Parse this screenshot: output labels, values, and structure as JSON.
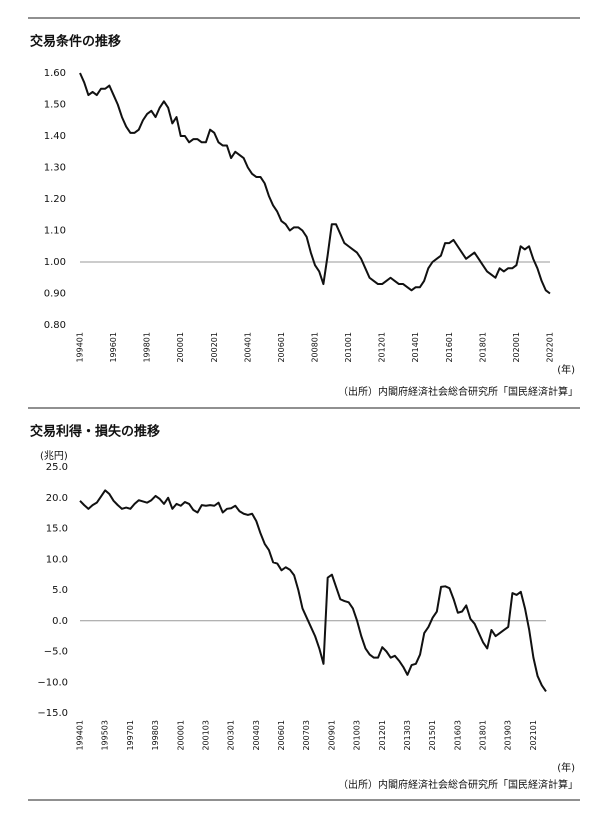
{
  "chart_data": [
    {
      "type": "line",
      "title": "交易条件の推移",
      "xlabel": "(年)",
      "note": "（出所）内閣府経済社会総合研究所「国民経済計算」",
      "categories": [
        "199401",
        null,
        null,
        null,
        null,
        null,
        null,
        null,
        "199601",
        null,
        null,
        null,
        null,
        null,
        null,
        null,
        "199801",
        null,
        null,
        null,
        null,
        null,
        null,
        null,
        "200001",
        null,
        null,
        null,
        null,
        null,
        null,
        null,
        "200201",
        null,
        null,
        null,
        null,
        null,
        null,
        null,
        "200401",
        null,
        null,
        null,
        null,
        null,
        null,
        null,
        "200601",
        null,
        null,
        null,
        null,
        null,
        null,
        null,
        "200801",
        null,
        null,
        null,
        null,
        null,
        null,
        null,
        "201001",
        null,
        null,
        null,
        null,
        null,
        null,
        null,
        "201201",
        null,
        null,
        null,
        null,
        null,
        null,
        null,
        "201401",
        null,
        null,
        null,
        null,
        null,
        null,
        null,
        "201601",
        null,
        null,
        null,
        null,
        null,
        null,
        null,
        "201801",
        null,
        null,
        null,
        null,
        null,
        null,
        null,
        "202001",
        null,
        null,
        null,
        null,
        null,
        null,
        null,
        "202201"
      ],
      "values": [
        1.6,
        1.57,
        1.53,
        1.54,
        1.53,
        1.55,
        1.55,
        1.56,
        1.53,
        1.5,
        1.46,
        1.43,
        1.41,
        1.41,
        1.42,
        1.45,
        1.47,
        1.48,
        1.46,
        1.49,
        1.51,
        1.49,
        1.44,
        1.46,
        1.4,
        1.4,
        1.38,
        1.39,
        1.39,
        1.38,
        1.38,
        1.42,
        1.41,
        1.38,
        1.37,
        1.37,
        1.33,
        1.35,
        1.34,
        1.33,
        1.3,
        1.28,
        1.27,
        1.27,
        1.25,
        1.21,
        1.18,
        1.16,
        1.13,
        1.12,
        1.1,
        1.11,
        1.11,
        1.1,
        1.08,
        1.03,
        0.99,
        0.97,
        0.93,
        1.02,
        1.12,
        1.12,
        1.09,
        1.06,
        1.05,
        1.04,
        1.03,
        1.01,
        0.98,
        0.95,
        0.94,
        0.93,
        0.93,
        0.94,
        0.95,
        0.94,
        0.93,
        0.93,
        0.92,
        0.91,
        0.92,
        0.92,
        0.94,
        0.98,
        1.0,
        1.01,
        1.02,
        1.06,
        1.06,
        1.07,
        1.05,
        1.03,
        1.01,
        1.02,
        1.03,
        1.01,
        0.99,
        0.97,
        0.96,
        0.95,
        0.98,
        0.97,
        0.98,
        0.98,
        0.99,
        1.05,
        1.04,
        1.05,
        1.01,
        0.98,
        0.94,
        0.91,
        0.9
      ],
      "color": "#111111",
      "baseline": 1,
      "ylim": [
        0.8,
        1.6
      ],
      "yticks": [
        {
          "value": 1.6,
          "label": "1.60"
        },
        {
          "value": 1.5,
          "label": "1.50"
        },
        {
          "value": 1.4,
          "label": "1.40"
        },
        {
          "value": 1.3,
          "label": "1.30"
        },
        {
          "value": 1.2,
          "label": "1.20"
        },
        {
          "value": 1.1,
          "label": "1.10"
        },
        {
          "value": 1.0,
          "label": "1.00"
        },
        {
          "value": 0.9,
          "label": "0.90"
        },
        {
          "value": 0.8,
          "label": "0.80"
        }
      ]
    },
    {
      "type": "line",
      "title": "交易利得・損失の推移",
      "ylabel": "(兆円)",
      "xlabel": "(年)",
      "note": "（出所）内閣府経済社会総合研究所「国民経済計算」",
      "categories": [
        "199401",
        null,
        null,
        null,
        null,
        null,
        "199503",
        null,
        null,
        null,
        null,
        null,
        "199701",
        null,
        null,
        null,
        null,
        null,
        "199803",
        null,
        null,
        null,
        null,
        null,
        "200001",
        null,
        null,
        null,
        null,
        null,
        "200103",
        null,
        null,
        null,
        null,
        null,
        "200301",
        null,
        null,
        null,
        null,
        null,
        "200403",
        null,
        null,
        null,
        null,
        null,
        "200601",
        null,
        null,
        null,
        null,
        null,
        "200703",
        null,
        null,
        null,
        null,
        null,
        "200901",
        null,
        null,
        null,
        null,
        null,
        "201003",
        null,
        null,
        null,
        null,
        null,
        "201201",
        null,
        null,
        null,
        null,
        null,
        "201303",
        null,
        null,
        null,
        null,
        null,
        "201501",
        null,
        null,
        null,
        null,
        null,
        "201603",
        null,
        null,
        null,
        null,
        null,
        "201801",
        null,
        null,
        null,
        null,
        null,
        "201903",
        null,
        null,
        null,
        null,
        null,
        "202101",
        null,
        null,
        null
      ],
      "values": [
        19.5,
        18.8,
        18.2,
        18.8,
        19.2,
        20.2,
        21.2,
        20.6,
        19.5,
        18.8,
        18.2,
        18.4,
        18.2,
        19.0,
        19.6,
        19.4,
        19.2,
        19.6,
        20.3,
        19.8,
        19.0,
        20.0,
        18.2,
        19.0,
        18.7,
        19.3,
        19.0,
        18.0,
        17.6,
        18.8,
        18.7,
        18.8,
        18.7,
        19.2,
        17.6,
        18.2,
        18.3,
        18.7,
        17.8,
        17.4,
        17.2,
        17.4,
        16.2,
        14.2,
        12.5,
        11.5,
        9.5,
        9.3,
        8.2,
        8.7,
        8.3,
        7.4,
        5.0,
        2.0,
        0.5,
        -1.0,
        -2.5,
        -4.5,
        -7.0,
        7.0,
        7.5,
        5.5,
        3.5,
        3.2,
        3.0,
        2.0,
        0.0,
        -2.5,
        -4.5,
        -5.5,
        -6.0,
        -6.0,
        -4.3,
        -5.0,
        -6.0,
        -5.7,
        -6.5,
        -7.5,
        -8.8,
        -7.2,
        -7.0,
        -5.5,
        -2.0,
        -1.0,
        0.5,
        1.5,
        5.5,
        5.6,
        5.3,
        3.5,
        1.3,
        1.5,
        2.5,
        0.3,
        -0.5,
        -2.0,
        -3.5,
        -4.5,
        -1.5,
        -2.5,
        -2.0,
        -1.5,
        -1.0,
        4.5,
        4.2,
        4.7,
        2.0,
        -1.5,
        -6.0,
        -9.0,
        -10.5,
        -11.5
      ],
      "color": "#111111",
      "baseline": 0,
      "ylim": [
        -15,
        25
      ],
      "yticks": [
        {
          "value": 25,
          "label": "25.0"
        },
        {
          "value": 20,
          "label": "20.0"
        },
        {
          "value": 15,
          "label": "15.0"
        },
        {
          "value": 10,
          "label": "10.0"
        },
        {
          "value": 5,
          "label": "5.0"
        },
        {
          "value": 0,
          "label": "0.0"
        },
        {
          "value": -5,
          "label": "−5.0"
        },
        {
          "value": -10,
          "label": "−10.0"
        },
        {
          "value": -15,
          "label": "−15.0"
        }
      ]
    }
  ]
}
